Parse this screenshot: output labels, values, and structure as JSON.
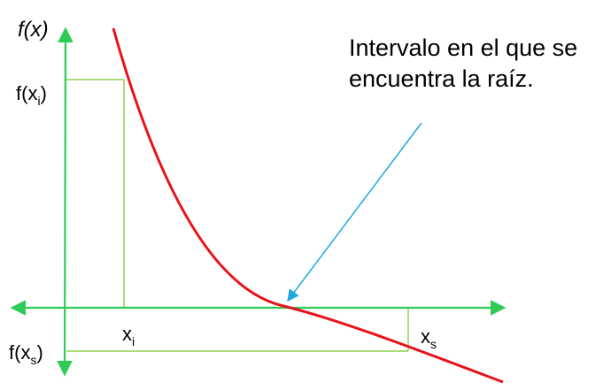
{
  "colors": {
    "axis": "#2ecc57",
    "guide": "#8fd14f",
    "curve": "#e8121a",
    "arrow": "#1fa9e0",
    "text": "#000000"
  },
  "labels": {
    "y_axis_fx": "f(x)",
    "f_xi": {
      "base": "f(x",
      "sub": "i",
      "close": ")"
    },
    "f_xs": {
      "base": "f(x",
      "sub": "s",
      "close": ")"
    },
    "xi": {
      "base": "x",
      "sub": "i"
    },
    "xs": {
      "base": "x",
      "sub": "s"
    }
  },
  "annotation": {
    "line1": "Intervalo en el que se",
    "line2": "encuentra la raíz."
  }
}
